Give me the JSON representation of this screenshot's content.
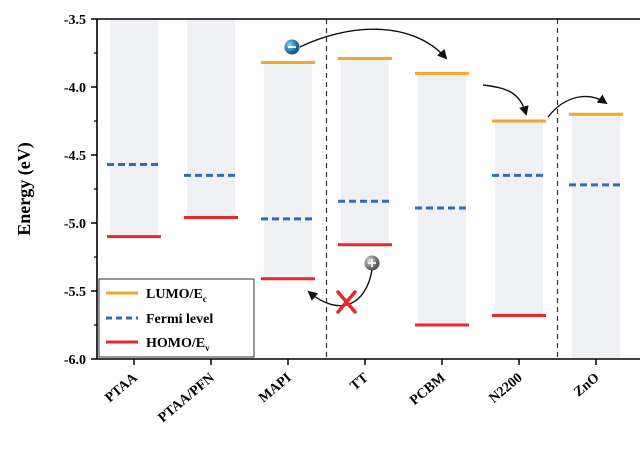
{
  "chart_data": {
    "type": "bar",
    "ylabel": "Energy (eV)",
    "ylim": [
      -6.0,
      -3.5
    ],
    "yticks": [
      "-3.5",
      "-4.0",
      "-4.5",
      "-5.0",
      "-5.5",
      "-6.0"
    ],
    "ytick_values": [
      -3.5,
      -4.0,
      -4.5,
      -5.0,
      -5.5,
      -6.0
    ],
    "categories": [
      "PTAA",
      "PTAA/PFN",
      "MAPI",
      "TT",
      "PCBM",
      "N2200",
      "ZnO"
    ],
    "series": [
      {
        "name": "LUMO/E",
        "name_sub": "c",
        "color": "#f5a623",
        "values": [
          null,
          null,
          -3.82,
          -3.79,
          -3.9,
          -4.25,
          -4.2
        ]
      },
      {
        "name": "Fermi level",
        "name_sub": "",
        "color": "#2f6db5",
        "values": [
          -4.57,
          -4.65,
          -4.97,
          -4.84,
          -4.89,
          -4.65,
          -4.72
        ]
      },
      {
        "name": "HOMO/E",
        "name_sub": "v",
        "color": "#e8282b",
        "values": [
          -5.1,
          -4.96,
          -5.41,
          -5.16,
          -5.75,
          -5.68,
          null
        ]
      }
    ],
    "band_tops": [
      -3.5,
      -3.5,
      -3.82,
      -3.79,
      -3.9,
      -4.25,
      -4.2
    ],
    "band_bottoms": [
      -5.1,
      -4.96,
      -5.41,
      -5.16,
      -5.75,
      -5.68,
      -6.0
    ],
    "band_color": "#eef0f4",
    "dividers_after": [
      "MAPI",
      "N2200"
    ],
    "legend_position": "bottom-left"
  }
}
